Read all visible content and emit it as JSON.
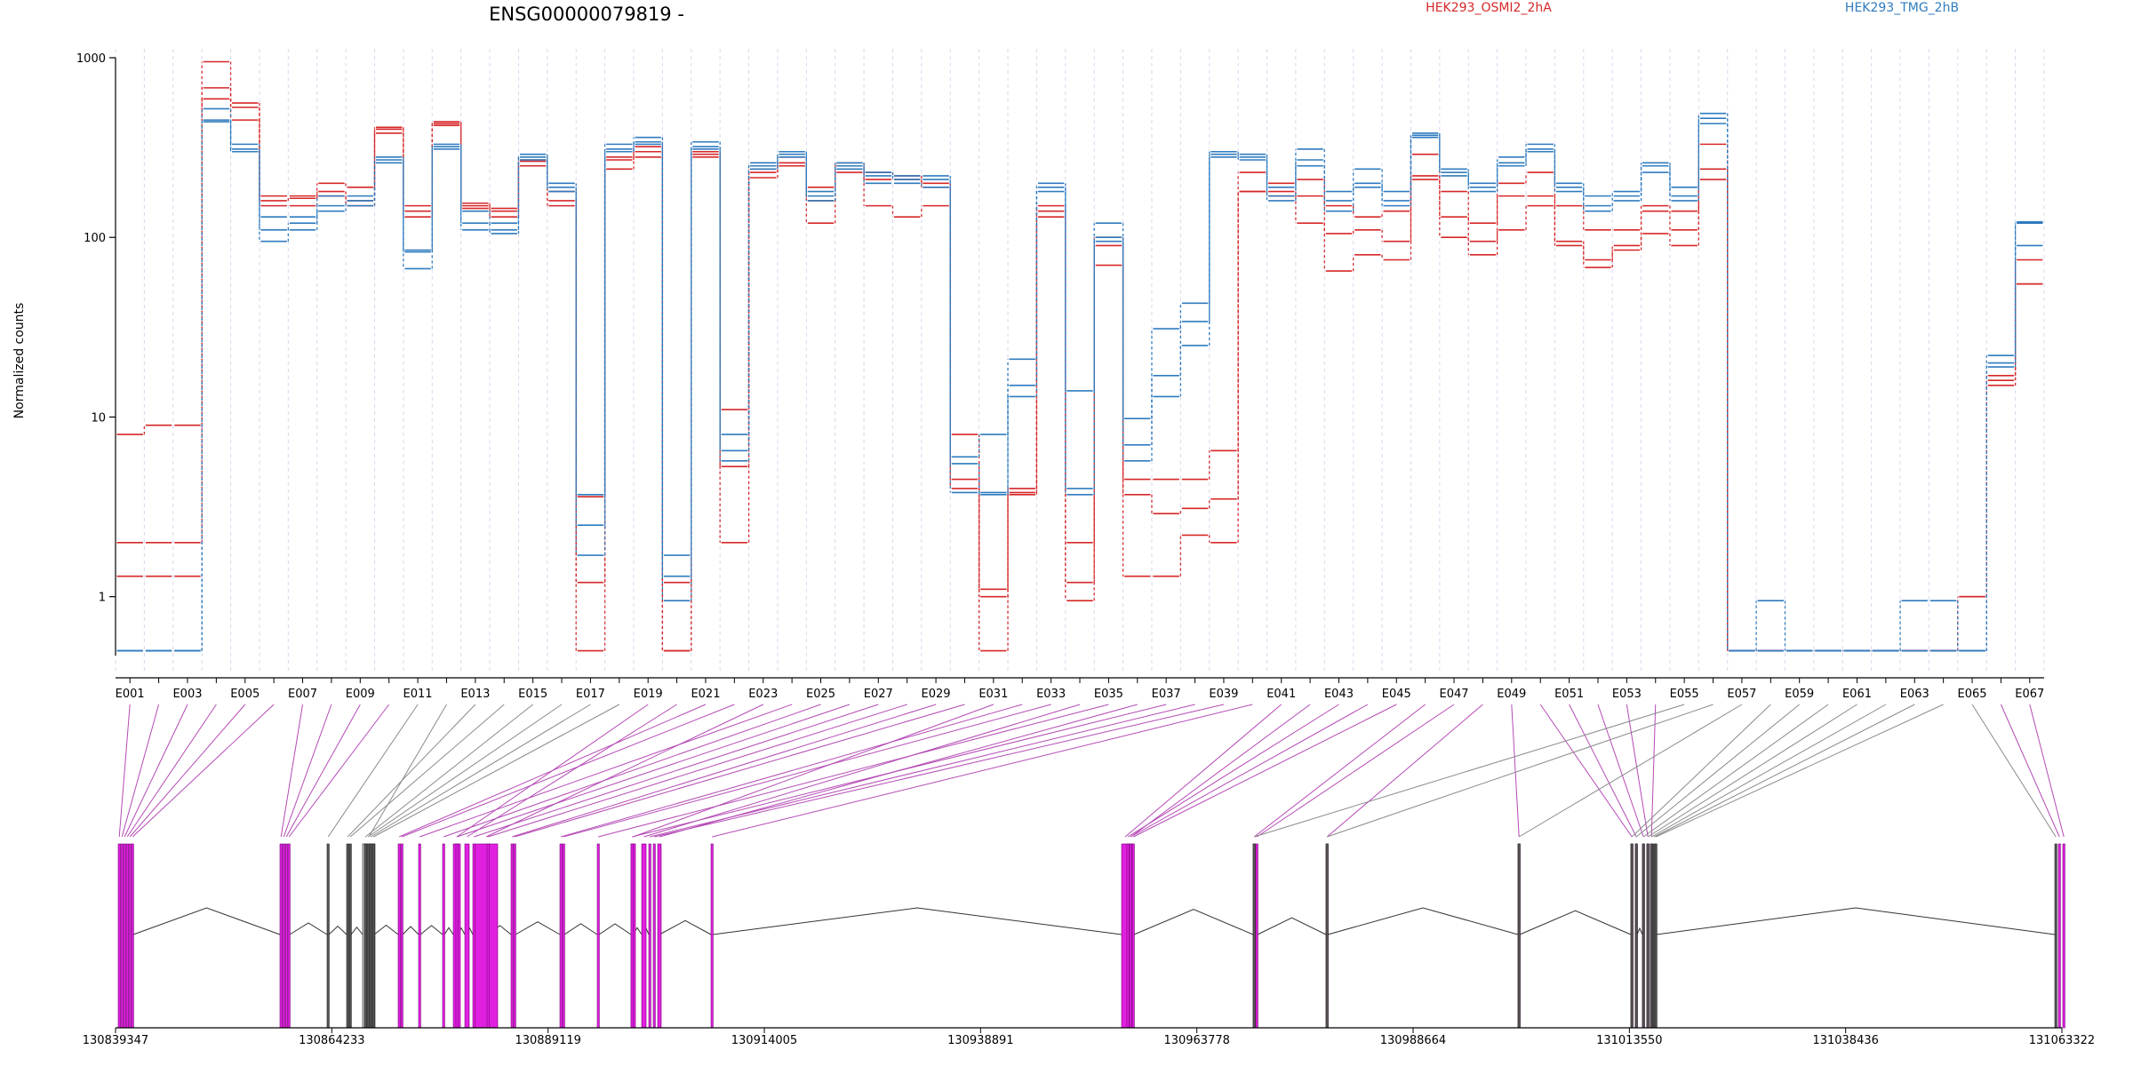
{
  "chart_data": {
    "type": "line",
    "title": "ENSG00000079819 -",
    "ylabel": "Normalized counts",
    "yscale": "log",
    "ylim": [
      0.47,
      1000
    ],
    "yticks": [
      "1000",
      "100",
      "10",
      "1"
    ],
    "ytick_values": [
      1000,
      100,
      10,
      1
    ],
    "legend": [
      {
        "label": "HEK293_OSMI2_2hA",
        "color": "#d62728"
      },
      {
        "label": "HEK293_TMG_2hB",
        "color": "#2f7bbf"
      }
    ],
    "exon_labels": [
      "E001",
      "E003",
      "E005",
      "E007",
      "E009",
      "E011",
      "E013",
      "E015",
      "E017",
      "E019",
      "E021",
      "E023",
      "E025",
      "E027",
      "E029",
      "E031",
      "E033",
      "E035",
      "E037",
      "E039",
      "E041",
      "E043",
      "E045",
      "E047",
      "E049",
      "E051",
      "E053",
      "E055",
      "E057",
      "E059",
      "E061",
      "E063",
      "E065",
      "E067"
    ],
    "series": [
      {
        "color": "#d62728",
        "values": [
          8,
          9,
          9,
          950,
          560,
          170,
          170,
          200,
          190,
          410,
          150,
          440,
          155,
          145,
          270,
          180,
          3.6,
          280,
          320,
          0.5,
          300,
          11,
          240,
          280,
          190,
          260,
          230,
          220,
          200,
          8,
          0.5,
          4,
          150,
          2,
          100,
          4.5,
          4.5,
          4.5,
          6.5,
          230,
          200,
          210,
          150,
          130,
          140,
          290,
          180,
          120,
          200,
          230,
          150,
          110,
          110,
          150,
          140,
          330,
          0.5,
          0.5,
          0.5,
          0.5,
          0.5,
          0.5,
          0.5,
          0.5,
          1,
          17,
          75
        ]
      },
      {
        "color": "#d62728",
        "values": [
          2,
          2,
          2,
          680,
          530,
          160,
          165,
          180,
          160,
          400,
          140,
          430,
          150,
          140,
          265,
          160,
          1.2,
          270,
          300,
          1.2,
          290,
          5.3,
          230,
          260,
          160,
          250,
          210,
          210,
          190,
          4.5,
          1.1,
          3.8,
          140,
          1.2,
          90,
          3.7,
          2.9,
          3.1,
          3.5,
          180,
          180,
          170,
          105,
          110,
          95,
          220,
          130,
          95,
          170,
          170,
          95,
          75,
          90,
          140,
          110,
          240,
          0.5,
          0.5,
          0.5,
          0.5,
          0.5,
          0.5,
          0.5,
          0.5,
          1,
          16,
          55
        ]
      },
      {
        "color": "#d62728",
        "values": [
          1.3,
          1.3,
          1.3,
          590,
          450,
          150,
          150,
          170,
          150,
          380,
          130,
          420,
          145,
          130,
          250,
          150,
          0.5,
          240,
          280,
          0.5,
          280,
          2,
          215,
          250,
          120,
          230,
          150,
          130,
          150,
          4,
          1,
          3.7,
          130,
          0.95,
          70,
          1.3,
          1.3,
          2.2,
          2,
          180,
          170,
          120,
          65,
          80,
          75,
          210,
          100,
          80,
          110,
          150,
          90,
          68,
          85,
          105,
          90,
          210,
          0.5,
          0.5,
          0.5,
          0.5,
          0.5,
          0.5,
          0.5,
          0.5,
          0.5,
          15,
          55
        ]
      },
      {
        "color": "#2f7bbf",
        "values": [
          0.5,
          0.5,
          0.5,
          520,
          330,
          130,
          130,
          170,
          170,
          280,
          85,
          330,
          140,
          120,
          290,
          200,
          2.5,
          330,
          360,
          1.7,
          340,
          8,
          260,
          300,
          180,
          260,
          230,
          220,
          220,
          6,
          8,
          21,
          200,
          14,
          120,
          9.8,
          31,
          43,
          300,
          290,
          190,
          310,
          180,
          240,
          180,
          380,
          240,
          200,
          280,
          330,
          200,
          170,
          180,
          260,
          190,
          490,
          0.5,
          0.95,
          0.5,
          0.5,
          0.5,
          0.5,
          0.95,
          0.95,
          0.5,
          22,
          122
        ]
      },
      {
        "color": "#2f7bbf",
        "values": [
          0.5,
          0.5,
          0.5,
          450,
          310,
          110,
          120,
          150,
          160,
          270,
          83,
          320,
          120,
          110,
          280,
          190,
          1.7,
          310,
          340,
          1.3,
          320,
          6.5,
          250,
          290,
          170,
          250,
          220,
          210,
          210,
          5.5,
          3.8,
          15,
          190,
          4,
          100,
          7,
          17,
          34,
          290,
          280,
          170,
          270,
          160,
          200,
          160,
          370,
          230,
          190,
          260,
          310,
          190,
          150,
          170,
          250,
          170,
          460,
          0.5,
          0.5,
          0.5,
          0.5,
          0.5,
          0.5,
          0.5,
          0.5,
          0.5,
          20,
          120
        ]
      },
      {
        "color": "#2f7bbf",
        "values": [
          0.5,
          0.5,
          0.5,
          440,
          300,
          95,
          110,
          140,
          150,
          260,
          67,
          310,
          110,
          105,
          270,
          180,
          3.7,
          300,
          330,
          0.95,
          310,
          5.7,
          240,
          280,
          160,
          240,
          200,
          200,
          190,
          3.8,
          3.7,
          13,
          180,
          3.7,
          95,
          5.7,
          13,
          25,
          280,
          270,
          160,
          250,
          140,
          190,
          150,
          360,
          220,
          180,
          250,
          300,
          180,
          140,
          160,
          230,
          160,
          430,
          0.5,
          0.5,
          0.5,
          0.5,
          0.5,
          0.5,
          0.5,
          0.5,
          0.5,
          19,
          90
        ]
      }
    ],
    "genomic_ticks": [
      "130839347",
      "130864233",
      "130889119",
      "130914005",
      "130938891",
      "130963778",
      "130988664",
      "131013550",
      "131038436",
      "131063322"
    ],
    "gene_model": {
      "highlight_color": "#e020e0",
      "other_color": "#555555",
      "exons": [
        {
          "label": "E001",
          "hl": true
        },
        {
          "label": "E002",
          "hl": true
        },
        {
          "label": "E003",
          "hl": true
        },
        {
          "label": "E004",
          "hl": true
        },
        {
          "label": "E005",
          "hl": true
        },
        {
          "label": "E006",
          "hl": true
        },
        {
          "label": "E007",
          "hl": true
        },
        {
          "label": "E008",
          "hl": true
        },
        {
          "label": "E009",
          "hl": true
        },
        {
          "label": "E010",
          "hl": true
        },
        {
          "label": "E011",
          "hl": false
        },
        {
          "label": "E012",
          "hl": false
        },
        {
          "label": "E013",
          "hl": false
        },
        {
          "label": "E014",
          "hl": false
        },
        {
          "label": "E015",
          "hl": false
        },
        {
          "label": "E016",
          "hl": false
        },
        {
          "label": "E017",
          "hl": false
        },
        {
          "label": "E018",
          "hl": false
        },
        {
          "label": "E019",
          "hl": true
        },
        {
          "label": "E020",
          "hl": true
        },
        {
          "label": "E021",
          "hl": true
        },
        {
          "label": "E022",
          "hl": true
        },
        {
          "label": "E023",
          "hl": true
        },
        {
          "label": "E024",
          "hl": true
        },
        {
          "label": "E025",
          "hl": true
        },
        {
          "label": "E026",
          "hl": true
        },
        {
          "label": "E027",
          "hl": true
        },
        {
          "label": "E028",
          "hl": true
        },
        {
          "label": "E029",
          "hl": true
        },
        {
          "label": "E030",
          "hl": true
        },
        {
          "label": "E031",
          "hl": true
        },
        {
          "label": "E032",
          "hl": true
        },
        {
          "label": "E033",
          "hl": true
        },
        {
          "label": "E034",
          "hl": true
        },
        {
          "label": "E035",
          "hl": true
        },
        {
          "label": "E036",
          "hl": true
        },
        {
          "label": "E037",
          "hl": true
        },
        {
          "label": "E038",
          "hl": true
        },
        {
          "label": "E039",
          "hl": true
        },
        {
          "label": "E040",
          "hl": true
        },
        {
          "label": "E041",
          "hl": true
        },
        {
          "label": "E042",
          "hl": true
        },
        {
          "label": "E043",
          "hl": true
        },
        {
          "label": "E044",
          "hl": true
        },
        {
          "label": "E045",
          "hl": true
        },
        {
          "label": "E046",
          "hl": true
        },
        {
          "label": "E047",
          "hl": true
        },
        {
          "label": "E048",
          "hl": true
        },
        {
          "label": "E049",
          "hl": true
        },
        {
          "label": "E050",
          "hl": true
        },
        {
          "label": "E051",
          "hl": true
        },
        {
          "label": "E052",
          "hl": true
        },
        {
          "label": "E053",
          "hl": true
        },
        {
          "label": "E054",
          "hl": true
        },
        {
          "label": "E055",
          "hl": false
        },
        {
          "label": "E056",
          "hl": false
        },
        {
          "label": "E057",
          "hl": false
        },
        {
          "label": "E058",
          "hl": false
        },
        {
          "label": "E059",
          "hl": false
        },
        {
          "label": "E060",
          "hl": false
        },
        {
          "label": "E061",
          "hl": false
        },
        {
          "label": "E062",
          "hl": false
        },
        {
          "label": "E063",
          "hl": false
        },
        {
          "label": "E064",
          "hl": false
        },
        {
          "label": "E065",
          "hl": false
        },
        {
          "label": "E066",
          "hl": true
        },
        {
          "label": "E067",
          "hl": true
        }
      ]
    }
  }
}
